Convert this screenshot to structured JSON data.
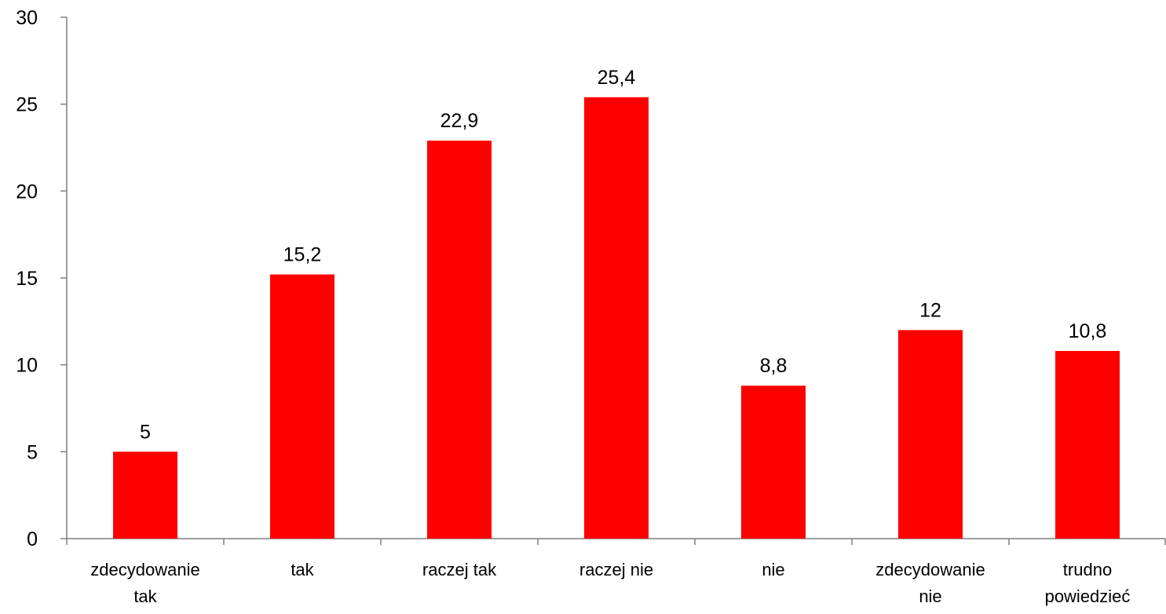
{
  "chart_data": {
    "type": "bar",
    "categories": [
      [
        "zdecydowanie",
        "tak"
      ],
      [
        "tak"
      ],
      [
        "raczej tak"
      ],
      [
        "raczej nie"
      ],
      [
        "nie"
      ],
      [
        "zdecydowanie",
        "nie"
      ],
      [
        "trudno",
        "powiedzieć"
      ]
    ],
    "values": [
      5,
      15.2,
      22.9,
      25.4,
      8.8,
      12,
      10.8
    ],
    "value_labels": [
      "5",
      "15,2",
      "22,9",
      "25,4",
      "8,8",
      "12",
      "10,8"
    ],
    "yticks": [
      "0",
      "5",
      "10",
      "15",
      "20",
      "25",
      "30"
    ],
    "ylim": [
      0,
      30
    ],
    "grid": false,
    "legend": false,
    "colors": {
      "bar": "#ff0000",
      "axis": "#7f7f7f"
    }
  }
}
